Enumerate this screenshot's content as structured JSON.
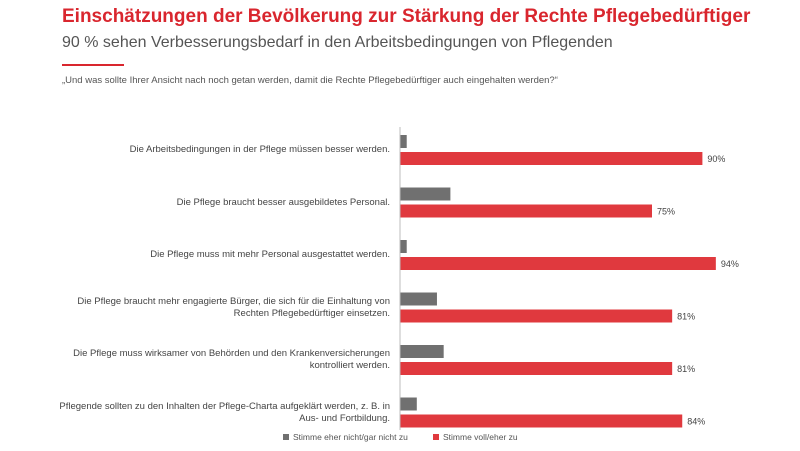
{
  "header": {
    "title": "Einschätzungen der Bevölkerung zur Stärkung der Rechte Pflegebedürftiger",
    "subtitle": "90 % sehen Verbesserungsbedarf in den Arbeitsbedingungen von Pflegenden",
    "question": "„Und was sollte Ihrer Ansicht nach noch getan werden, damit die Rechte Pflegebedürftiger auch eingehalten werden?“"
  },
  "chart_data": {
    "type": "bar",
    "orientation": "horizontal",
    "categories": [
      "Die Arbeitsbedingungen in der Pflege müssen besser werden.",
      "Die Pflege braucht besser ausgebildetes Personal.",
      "Die Pflege muss mit mehr Personal ausgestattet werden.",
      "Die Pflege braucht mehr engagierte Bürger, die sich für die Einhaltung von Rechten Pflegebedürftiger einsetzen.",
      "Die Pflege muss wirksamer von Behörden und den Krankenversicherungen kontrolliert werden.",
      "Pflegende sollten zu den Inhalten der Pflege-Charta aufgeklärt werden, z. B. in Aus- und Fortbildung."
    ],
    "series": [
      {
        "name": "Stimme eher nicht/gar nicht zu",
        "values": [
          2,
          15,
          2,
          11,
          13,
          5
        ],
        "color": "#707070"
      },
      {
        "name": "Stimme voll/eher zu",
        "values": [
          90,
          75,
          94,
          81,
          81,
          84
        ],
        "color": "#e0393e"
      }
    ],
    "data_labels": [
      "90%",
      "75%",
      "94%",
      "81%",
      "81%",
      "84%"
    ],
    "xlim": [
      0,
      100
    ],
    "grid": false,
    "legend_position": "bottom"
  }
}
